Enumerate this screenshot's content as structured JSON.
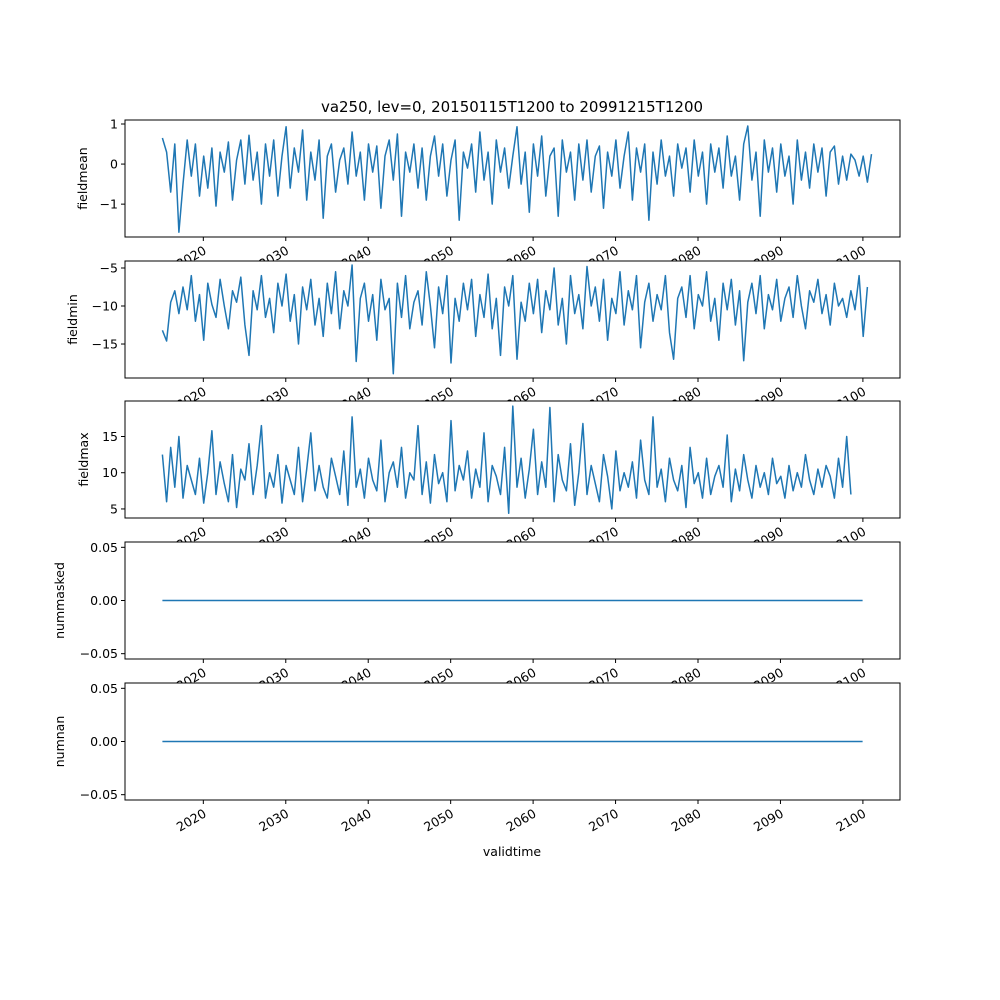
{
  "chart_data": {
    "type": "line",
    "title": "va250, lev=0, 20150115T1200 to 20991215T1200",
    "xlabel": "validtime",
    "x_start_year": 2015.04,
    "x_step_years": 0.5,
    "xlim": [
      2010.5,
      2104.5
    ],
    "xticks": [
      2020,
      2030,
      2040,
      2050,
      2060,
      2070,
      2080,
      2090,
      2100
    ],
    "xtick_labels": [
      "2020",
      "2030",
      "2040",
      "2050",
      "2060",
      "2070",
      "2080",
      "2090",
      "2100"
    ],
    "line_color": "#1f77b4",
    "grid": false,
    "panels": [
      {
        "ylabel": "fieldmean",
        "ylim": [
          -1.82,
          1.1
        ],
        "yticks": [
          1,
          0,
          -1
        ],
        "ytick_labels": [
          "1",
          "0",
          "−1"
        ],
        "values": [
          0.65,
          0.3,
          -0.7,
          0.5,
          -1.7,
          -0.5,
          0.6,
          -0.3,
          0.5,
          -0.8,
          0.2,
          -0.6,
          0.4,
          -1.05,
          0.3,
          -0.2,
          0.55,
          -0.9,
          0.1,
          0.6,
          -0.5,
          0.72,
          -0.4,
          0.3,
          -1.0,
          0.5,
          -0.3,
          0.6,
          -0.8,
          0.2,
          0.93,
          -0.6,
          0.4,
          -0.2,
          0.85,
          -0.9,
          0.3,
          -0.4,
          0.6,
          -1.35,
          0.2,
          0.5,
          -0.7,
          0.1,
          0.4,
          -0.5,
          0.8,
          -0.3,
          0.3,
          -0.9,
          0.5,
          -0.2,
          0.45,
          -1.1,
          0.2,
          0.6,
          -0.4,
          0.75,
          -1.3,
          0.3,
          -0.2,
          0.5,
          -0.6,
          0.4,
          -0.9,
          0.2,
          0.7,
          -0.3,
          0.5,
          -0.8,
          0.1,
          0.6,
          -1.4,
          0.3,
          -0.1,
          0.5,
          -0.7,
          0.8,
          -0.4,
          0.3,
          -1.0,
          0.6,
          -0.2,
          0.4,
          -0.6,
          0.2,
          0.93,
          -0.5,
          0.3,
          -1.2,
          0.5,
          -0.3,
          0.7,
          -0.8,
          0.2,
          0.4,
          -1.3,
          0.6,
          -0.2,
          0.3,
          -0.9,
          0.5,
          -0.4,
          0.6,
          -0.7,
          0.2,
          0.45,
          -1.1,
          0.3,
          -0.3,
          0.6,
          -0.6,
          0.2,
          0.8,
          -0.9,
          0.4,
          -0.2,
          0.5,
          -1.4,
          0.3,
          -0.5,
          0.6,
          -0.3,
          0.2,
          -0.8,
          0.5,
          -0.1,
          0.4,
          -0.7,
          0.6,
          -0.3,
          0.3,
          -1.0,
          0.5,
          -0.2,
          0.4,
          -0.6,
          0.7,
          -0.3,
          0.2,
          -0.9,
          0.5,
          0.95,
          -0.4,
          0.3,
          -1.3,
          0.6,
          -0.2,
          0.4,
          -0.7,
          0.5,
          -0.3,
          0.2,
          -1.0,
          0.6,
          -0.4,
          0.3,
          -0.6,
          0.5,
          -0.2,
          0.4,
          -0.8,
          0.3,
          0.45,
          -0.5,
          0.2,
          -0.4,
          0.25,
          0.1,
          -0.3,
          0.2,
          -0.45,
          0.25
        ]
      },
      {
        "ylabel": "fieldmin",
        "ylim": [
          -19.47,
          -4.08
        ],
        "yticks": [
          -5,
          -10,
          -15
        ],
        "ytick_labels": [
          "−5",
          "−10",
          "−15"
        ],
        "values": [
          -13.2,
          -14.6,
          -9.5,
          -8.0,
          -11.0,
          -7.5,
          -10.5,
          -6.0,
          -12.0,
          -8.5,
          -14.5,
          -7.0,
          -9.8,
          -11.5,
          -6.5,
          -10.0,
          -13.0,
          -8.0,
          -9.5,
          -6.2,
          -12.5,
          -16.5,
          -8.0,
          -10.5,
          -6.0,
          -11.5,
          -9.0,
          -13.5,
          -7.0,
          -10.0,
          -5.8,
          -12.0,
          -8.5,
          -15.0,
          -7.5,
          -10.5,
          -6.5,
          -12.5,
          -9.0,
          -14.0,
          -7.0,
          -11.0,
          -5.5,
          -13.0,
          -8.0,
          -10.0,
          -4.6,
          -17.3,
          -9.0,
          -7.0,
          -12.0,
          -8.5,
          -14.5,
          -6.5,
          -10.5,
          -9.0,
          -18.9,
          -7.0,
          -11.5,
          -6.0,
          -13.0,
          -9.5,
          -8.0,
          -12.5,
          -5.5,
          -10.0,
          -15.5,
          -7.5,
          -11.0,
          -6.0,
          -17.5,
          -9.0,
          -12.0,
          -7.0,
          -10.5,
          -6.5,
          -14.0,
          -8.5,
          -11.5,
          -5.8,
          -13.0,
          -9.0,
          -16.5,
          -7.5,
          -10.0,
          -6.0,
          -17.0,
          -9.5,
          -12.0,
          -7.0,
          -11.0,
          -6.5,
          -13.5,
          -8.0,
          -10.5,
          -5.0,
          -12.5,
          -9.0,
          -15.0,
          -6.0,
          -11.0,
          -8.5,
          -13.0,
          -4.8,
          -10.0,
          -7.5,
          -12.0,
          -6.5,
          -14.5,
          -9.0,
          -11.0,
          -5.5,
          -12.5,
          -8.0,
          -10.5,
          -6.0,
          -15.5,
          -9.5,
          -7.0,
          -12.0,
          -8.5,
          -10.5,
          -6.0,
          -13.5,
          -17.0,
          -9.0,
          -7.5,
          -11.5,
          -6.0,
          -13.0,
          -8.5,
          -10.0,
          -5.5,
          -12.0,
          -9.0,
          -14.5,
          -7.0,
          -10.5,
          -6.5,
          -12.5,
          -8.0,
          -17.2,
          -9.5,
          -7.0,
          -11.0,
          -6.0,
          -13.0,
          -8.5,
          -10.5,
          -6.5,
          -12.0,
          -9.0,
          -7.5,
          -11.5,
          -6.0,
          -10.0,
          -13.0,
          -8.0,
          -9.5,
          -6.5,
          -11.0,
          -8.5,
          -12.5,
          -7.0,
          -10.0,
          -9.0,
          -11.5,
          -8.0,
          -10.5,
          -6.0,
          -14.0,
          -7.5
        ]
      },
      {
        "ylabel": "fieldmax",
        "ylim": [
          3.75,
          19.9
        ],
        "yticks": [
          15,
          10,
          5
        ],
        "ytick_labels": [
          "15",
          "10",
          "5"
        ],
        "values": [
          12.5,
          6.0,
          13.5,
          8.0,
          15.0,
          6.5,
          11.0,
          9.0,
          7.0,
          12.0,
          5.8,
          10.0,
          15.8,
          7.0,
          11.5,
          8.5,
          6.0,
          12.5,
          5.2,
          10.5,
          9.0,
          14.0,
          7.0,
          11.0,
          16.5,
          6.5,
          10.0,
          8.0,
          12.5,
          5.8,
          11.0,
          9.0,
          7.0,
          13.5,
          6.0,
          10.5,
          15.5,
          7.5,
          11.0,
          8.0,
          6.5,
          12.0,
          9.5,
          7.0,
          13.0,
          5.5,
          17.7,
          8.0,
          10.5,
          6.5,
          12.0,
          9.0,
          7.5,
          14.5,
          6.0,
          10.0,
          11.5,
          8.0,
          13.5,
          6.5,
          10.0,
          9.0,
          16.5,
          7.0,
          11.5,
          5.8,
          12.5,
          8.5,
          10.0,
          6.0,
          17.2,
          7.5,
          11.0,
          9.0,
          13.0,
          6.5,
          10.5,
          8.0,
          15.5,
          6.0,
          11.0,
          9.5,
          7.0,
          13.5,
          4.4,
          19.2,
          8.0,
          12.0,
          6.5,
          10.5,
          16.0,
          7.0,
          11.5,
          8.0,
          19.0,
          6.0,
          12.5,
          9.0,
          7.5,
          14.0,
          5.5,
          10.0,
          16.8,
          7.0,
          11.0,
          8.5,
          6.0,
          12.5,
          9.5,
          5.0,
          13.0,
          7.5,
          10.0,
          8.0,
          11.5,
          6.5,
          14.5,
          9.0,
          7.0,
          17.7,
          8.0,
          10.5,
          6.0,
          12.0,
          9.0,
          7.5,
          11.0,
          5.2,
          13.5,
          8.5,
          10.0,
          6.5,
          12.0,
          7.0,
          9.5,
          11.0,
          8.0,
          15.2,
          6.0,
          10.5,
          7.5,
          12.5,
          9.0,
          6.5,
          11.0,
          8.0,
          10.0,
          7.0,
          12.0,
          8.5,
          9.5,
          6.5,
          11.0,
          7.5,
          10.0,
          8.0,
          12.5,
          9.0,
          7.0,
          10.5,
          8.0,
          11.0,
          9.5,
          6.5,
          12.0,
          8.0,
          15.0,
          7.0
        ]
      },
      {
        "ylabel": "nummasked",
        "ylim": [
          -0.055,
          0.055
        ],
        "yticks": [
          0.05,
          0,
          -0.05
        ],
        "ytick_labels": [
          "0.05",
          "0.00",
          "−0.05"
        ],
        "values": [
          0,
          0
        ]
      },
      {
        "ylabel": "numnan",
        "ylim": [
          -0.055,
          0.055
        ],
        "yticks": [
          0.05,
          0,
          -0.05
        ],
        "ytick_labels": [
          "0.05",
          "0.00",
          "−0.05"
        ],
        "values": [
          0,
          0
        ]
      }
    ]
  }
}
